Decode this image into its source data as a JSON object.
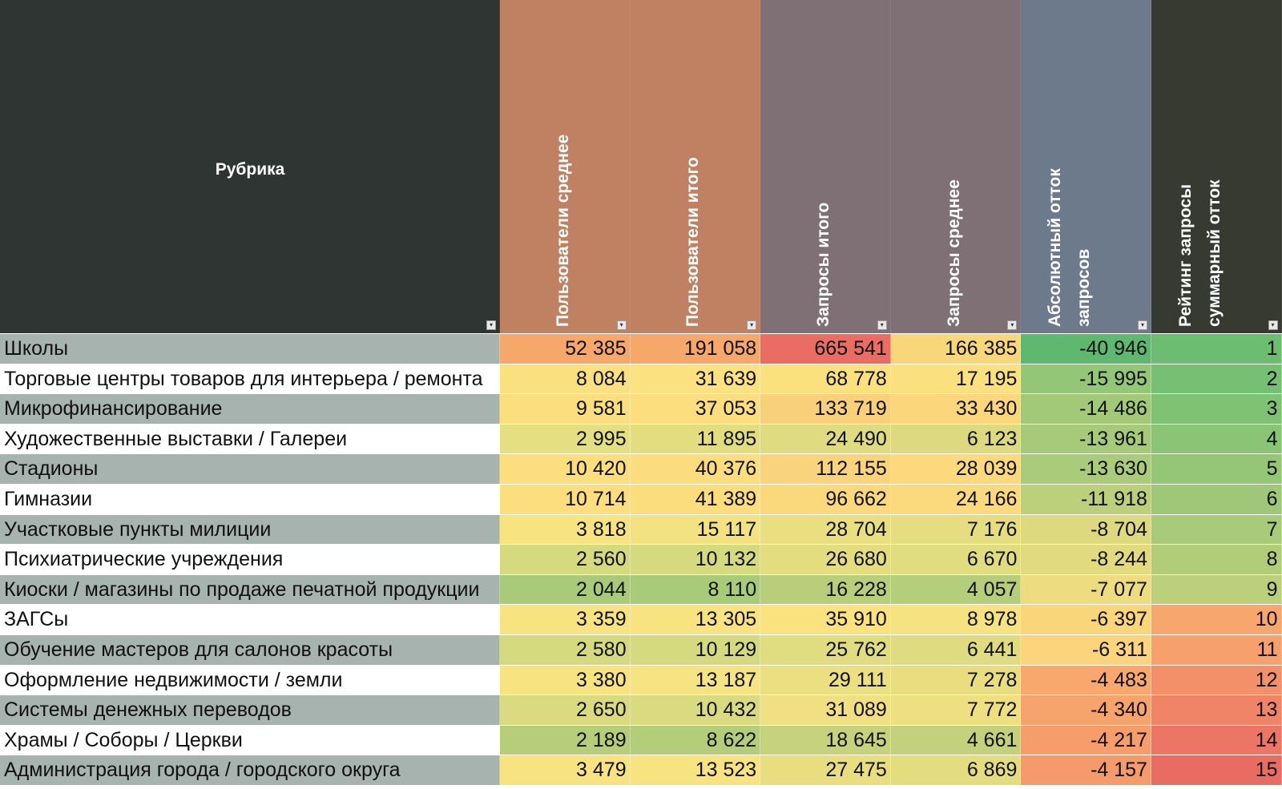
{
  "header": {
    "rubric": "Рубрика",
    "columns": [
      {
        "label": "Пользователи среднее",
        "color": "#c08062"
      },
      {
        "label": "Пользователи итого",
        "color": "#c08062"
      },
      {
        "label": "Запросы итого",
        "color": "#7f7075"
      },
      {
        "label": "Запросы среднее",
        "color": "#7f7075"
      },
      {
        "label": "Абсолютный отток\nзапросов",
        "color": "#6c7a8b"
      },
      {
        "label": "Рейтинг запросы\nсуммарный отток",
        "color": "#373a30"
      }
    ],
    "rubric_color": "#2e3533"
  },
  "rows": [
    {
      "name": "Школы",
      "vals": [
        "52 385",
        "191 058",
        "665 541",
        "166 385",
        "-40 946",
        "1"
      ],
      "colors": [
        "#f6a86a",
        "#f6a86a",
        "#e96d63",
        "#f8d67a",
        "#5eb870",
        "#6cbd72"
      ]
    },
    {
      "name": "Торговые центры товаров для интерьера / ремонта",
      "vals": [
        "8 084",
        "31 639",
        "68 778",
        "17 195",
        "-15 995",
        "2"
      ],
      "colors": [
        "#fae07e",
        "#fbe17f",
        "#fbe07e",
        "#fae07e",
        "#93c677",
        "#76bf73"
      ]
    },
    {
      "name": "Микрофинансирование",
      "vals": [
        "9 581",
        "37 053",
        "133 719",
        "33 430",
        "-14 486",
        "3"
      ],
      "colors": [
        "#fbdf7e",
        "#fcde7e",
        "#f8d07a",
        "#fbd67b",
        "#a1c978",
        "#80c274"
      ]
    },
    {
      "name": "Художественные выставки / Галереи",
      "vals": [
        "2 995",
        "11 895",
        "24 490",
        "6 123",
        "-13 961",
        "4"
      ],
      "colors": [
        "#e4df81",
        "#e2de80",
        "#dfdb80",
        "#dcd97f",
        "#a6ca79",
        "#8ac475"
      ]
    },
    {
      "name": "Стадионы",
      "vals": [
        "10 420",
        "40 376",
        "112 155",
        "28 039",
        "-13 630",
        "5"
      ],
      "colors": [
        "#fcde7e",
        "#fcdd7d",
        "#f9d47c",
        "#fbd97c",
        "#aacb79",
        "#94c676"
      ]
    },
    {
      "name": "Гимназии",
      "vals": [
        "10 714",
        "41 389",
        "96 662",
        "24 166",
        "-11 918",
        "6"
      ],
      "colors": [
        "#fcde7e",
        "#fcdd7d",
        "#fad87c",
        "#fbda7d",
        "#bccf7b",
        "#9ec878"
      ]
    },
    {
      "name": "Участковые пункты милиции",
      "vals": [
        "3 818",
        "15 117",
        "28 704",
        "7 176",
        "-8 704",
        "7"
      ],
      "colors": [
        "#f8e381",
        "#f2e281",
        "#e9df81",
        "#e6dc80",
        "#dcd97f",
        "#a8cb79"
      ]
    },
    {
      "name": "Психиатрические учреждения",
      "vals": [
        "2 560",
        "10 132",
        "26 680",
        "6 670",
        "-8 244",
        "8"
      ],
      "colors": [
        "#d5da7f",
        "#d5da7f",
        "#e4dd80",
        "#e0dc80",
        "#e1da7f",
        "#b2cd7a"
      ]
    },
    {
      "name": "Киоски / магазины по продаже печатной продукции",
      "vals": [
        "2 044",
        "8 110",
        "16 228",
        "4 057",
        "-7 077",
        "9"
      ],
      "colors": [
        "#a9cb79",
        "#a8cb79",
        "#b7ce7b",
        "#b5ce7b",
        "#eedd80",
        "#bccf7b"
      ]
    },
    {
      "name": "ЗАГСы",
      "vals": [
        "3 359",
        "13 305",
        "35 910",
        "8 978",
        "-6 397",
        "10"
      ],
      "colors": [
        "#f8e381",
        "#f8e381",
        "#fae27f",
        "#f5e281",
        "#fad67b",
        "#f7a76d"
      ]
    },
    {
      "name": "Обучение мастеров для салонов красоты",
      "vals": [
        "2 580",
        "10 129",
        "25 762",
        "6 441",
        "-6 311",
        "11"
      ],
      "colors": [
        "#d5da7f",
        "#d5da7f",
        "#e0dc80",
        "#dedb80",
        "#fbd47b",
        "#f6a16b"
      ]
    },
    {
      "name": "Оформление недвижимости / земли",
      "vals": [
        "3 380",
        "13 187",
        "29 111",
        "7 278",
        "-4 483",
        "12"
      ],
      "colors": [
        "#f8e381",
        "#f6e381",
        "#eadf81",
        "#e8de80",
        "#f8a86d",
        "#f39069"
      ]
    },
    {
      "name": "Системы денежных переводов",
      "vals": [
        "2 650",
        "10 432",
        "31 089",
        "7 772",
        "-4 340",
        "13"
      ],
      "colors": [
        "#dadb80",
        "#dadb80",
        "#f1e081",
        "#eedf80",
        "#f7a46c",
        "#f08467"
      ]
    },
    {
      "name": "Храмы / Соборы / Церкви",
      "vals": [
        "2 189",
        "8 622",
        "18 645",
        "4 661",
        "-4 217",
        "14"
      ],
      "colors": [
        "#b6cd7a",
        "#b4cd7a",
        "#c6d27c",
        "#c4d17c",
        "#f69e6b",
        "#ec7665"
      ]
    },
    {
      "name": "Администрация города / городского округа",
      "vals": [
        "3 479",
        "13 523",
        "27 475",
        "6 869",
        "-4 157",
        "15"
      ],
      "colors": [
        "#f8e381",
        "#f8e381",
        "#e8de80",
        "#e4dd80",
        "#f59a6a",
        "#e96c63"
      ]
    }
  ]
}
